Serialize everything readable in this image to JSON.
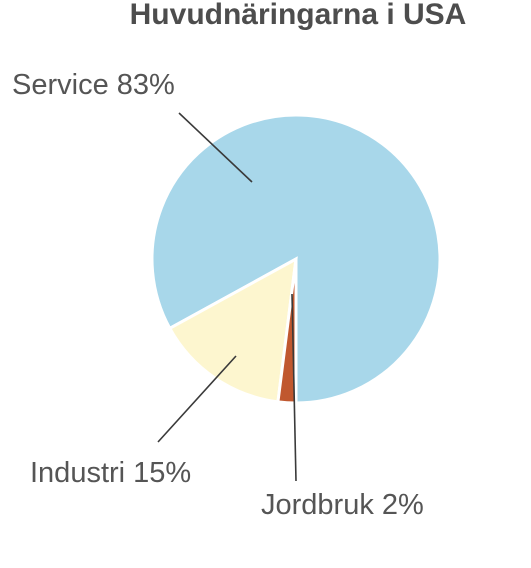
{
  "chart_data": {
    "type": "pie",
    "title": "Huvudnäringarna i USA",
    "slices": [
      {
        "label": "Service 83%",
        "value": 83,
        "color": "#a8d7ea"
      },
      {
        "label": "Industri 15%",
        "value": 15,
        "color": "#fdf6cf"
      },
      {
        "label": "Jordbruk 2%",
        "value": 2,
        "color": "#c0582f"
      }
    ],
    "legend": "none"
  }
}
